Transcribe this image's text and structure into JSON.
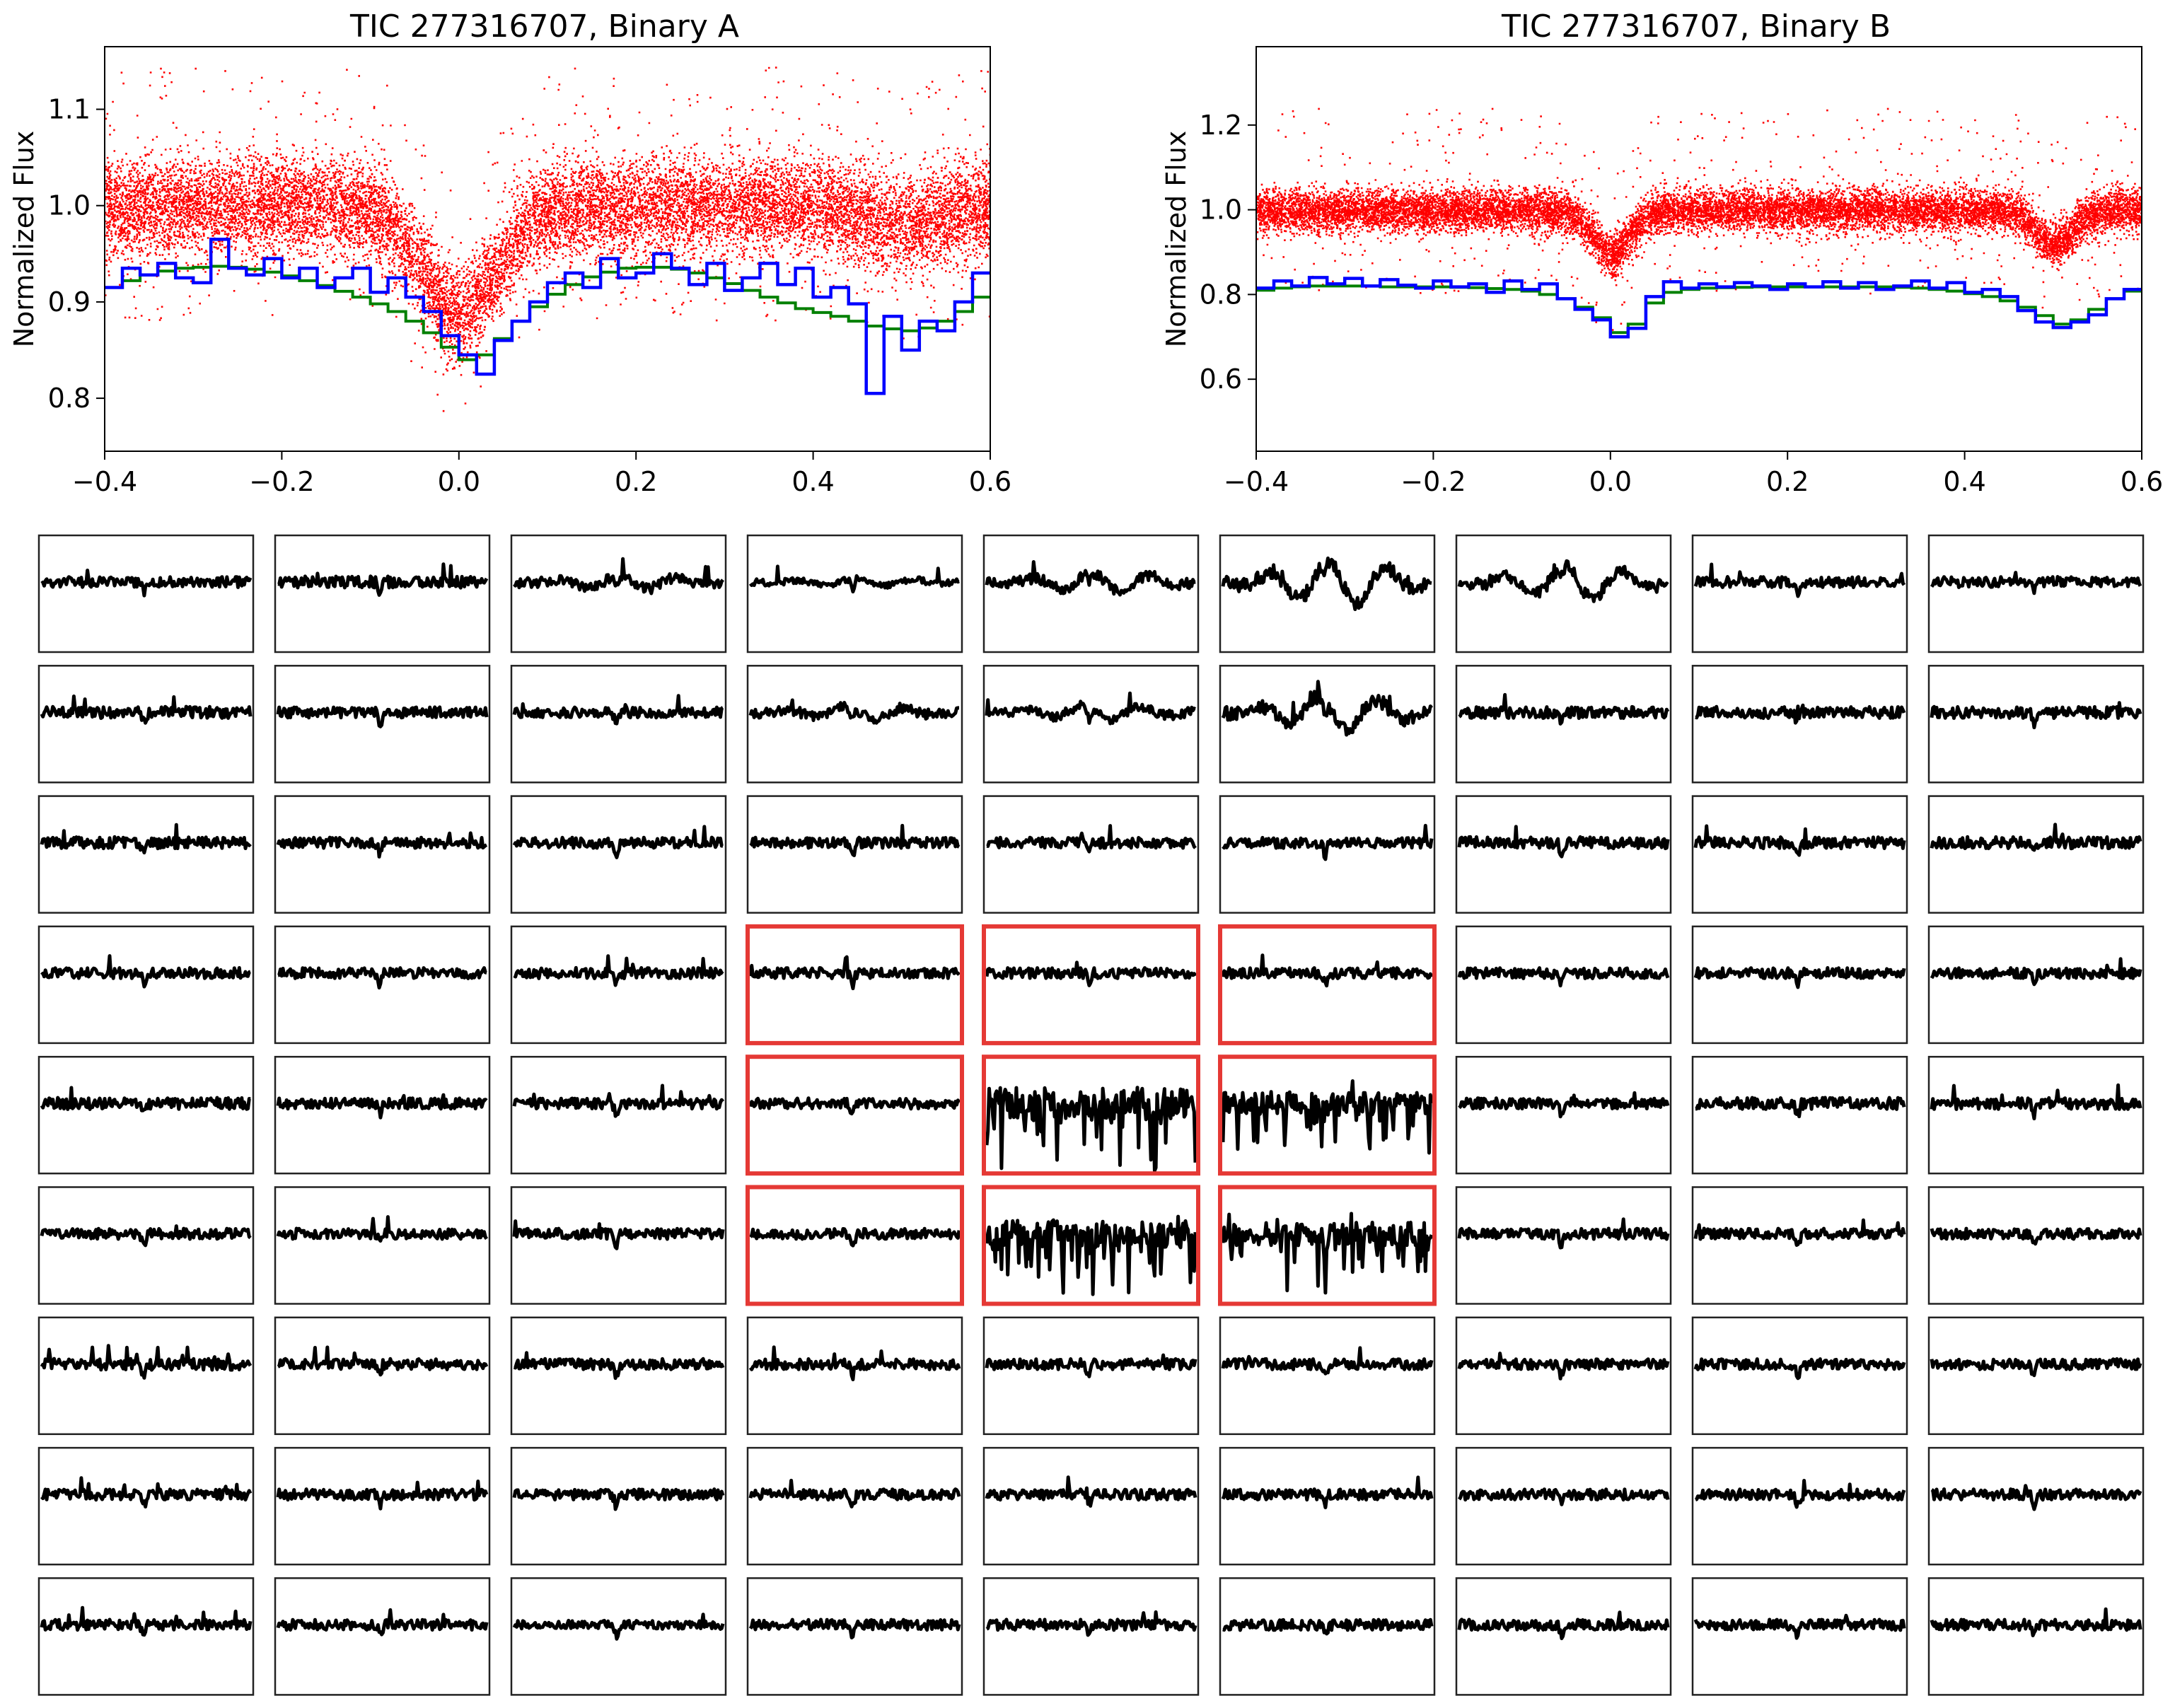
{
  "chart_data": [
    {
      "type": "scatter",
      "title": "TIC 277316707, Binary A",
      "xlabel": "",
      "ylabel": "Normalized Flux",
      "xlim": [
        -0.4,
        0.6
      ],
      "ylim": [
        0.745,
        1.165
      ],
      "xticks": [
        "−0.4",
        "−0.2",
        "0.0",
        "0.2",
        "0.4",
        "0.6"
      ],
      "xtick_values": [
        -0.4,
        -0.2,
        0.0,
        0.2,
        0.4,
        0.6
      ],
      "yticks": [
        "0.8",
        "0.9",
        "1.0",
        "1.1"
      ],
      "ytick_values": [
        0.8,
        0.9,
        1.0,
        1.1
      ],
      "scatter_color": "#ff0000",
      "model": {
        "primary_eclipse": {
          "phase": 0.0,
          "depth": 0.11,
          "width": 0.06
        },
        "secondary_eclipse": {
          "phase": 0.5,
          "depth": 0.02,
          "width": 0.06
        },
        "band_halfwidth": 0.045,
        "scatter_spread": 0.12
      },
      "series": [
        {
          "color": "#0000ff",
          "step": true,
          "x": [
            -0.4,
            -0.38,
            -0.36,
            -0.34,
            -0.32,
            -0.3,
            -0.28,
            -0.26,
            -0.24,
            -0.22,
            -0.2,
            -0.18,
            -0.16,
            -0.14,
            -0.12,
            -0.1,
            -0.08,
            -0.06,
            -0.04,
            -0.02,
            0.0,
            0.02,
            0.04,
            0.06,
            0.08,
            0.1,
            0.12,
            0.14,
            0.16,
            0.18,
            0.2,
            0.22,
            0.24,
            0.26,
            0.28,
            0.3,
            0.32,
            0.34,
            0.36,
            0.38,
            0.4,
            0.42,
            0.44,
            0.46,
            0.48,
            0.5,
            0.52,
            0.54,
            0.56,
            0.58
          ],
          "values": [
            0.915,
            0.935,
            0.928,
            0.94,
            0.925,
            0.92,
            0.965,
            0.935,
            0.928,
            0.945,
            0.925,
            0.935,
            0.915,
            0.925,
            0.935,
            0.91,
            0.925,
            0.905,
            0.89,
            0.865,
            0.845,
            0.825,
            0.86,
            0.88,
            0.9,
            0.92,
            0.93,
            0.915,
            0.945,
            0.925,
            0.93,
            0.95,
            0.935,
            0.918,
            0.94,
            0.912,
            0.925,
            0.94,
            0.918,
            0.935,
            0.905,
            0.915,
            0.898,
            0.805,
            0.885,
            0.85,
            0.88,
            0.87,
            0.9,
            0.93
          ]
        },
        {
          "color": "#008000",
          "step": true,
          "x": [
            -0.4,
            -0.38,
            -0.36,
            -0.34,
            -0.32,
            -0.3,
            -0.28,
            -0.26,
            -0.24,
            -0.22,
            -0.2,
            -0.18,
            -0.16,
            -0.14,
            -0.12,
            -0.1,
            -0.08,
            -0.06,
            -0.04,
            -0.02,
            0.0,
            0.02,
            0.04,
            0.06,
            0.08,
            0.1,
            0.12,
            0.14,
            0.16,
            0.18,
            0.2,
            0.22,
            0.24,
            0.26,
            0.28,
            0.3,
            0.32,
            0.34,
            0.36,
            0.38,
            0.4,
            0.42,
            0.44,
            0.46,
            0.48,
            0.5,
            0.52,
            0.54,
            0.56,
            0.58
          ],
          "values": [
            0.915,
            0.922,
            0.928,
            0.932,
            0.935,
            0.936,
            0.937,
            0.936,
            0.934,
            0.931,
            0.927,
            0.922,
            0.917,
            0.911,
            0.905,
            0.898,
            0.89,
            0.88,
            0.868,
            0.853,
            0.84,
            0.845,
            0.862,
            0.88,
            0.895,
            0.908,
            0.918,
            0.926,
            0.931,
            0.935,
            0.936,
            0.936,
            0.934,
            0.93,
            0.925,
            0.919,
            0.912,
            0.905,
            0.899,
            0.893,
            0.889,
            0.885,
            0.88,
            0.875,
            0.872,
            0.87,
            0.873,
            0.88,
            0.89,
            0.905
          ]
        }
      ]
    },
    {
      "type": "scatter",
      "title": "TIC 277316707, Binary B",
      "xlabel": "",
      "ylabel": "Normalized Flux",
      "xlim": [
        -0.4,
        0.6
      ],
      "ylim": [
        0.43,
        1.385
      ],
      "xticks": [
        "−0.4",
        "−0.2",
        "0.0",
        "0.2",
        "0.4",
        "0.6"
      ],
      "xtick_values": [
        -0.4,
        -0.2,
        0.0,
        0.2,
        0.4,
        0.6
      ],
      "yticks": [
        "0.6",
        "0.8",
        "1.0",
        "1.2"
      ],
      "ytick_values": [
        0.6,
        0.8,
        1.0,
        1.2
      ],
      "scatter_color": "#ff0000",
      "model": {
        "primary_eclipse": {
          "phase": 0.0,
          "depth": 0.1,
          "width": 0.03
        },
        "secondary_eclipse": {
          "phase": 0.5,
          "depth": 0.08,
          "width": 0.03
        },
        "band_halfwidth": 0.045,
        "scatter_spread": 0.2
      },
      "series": [
        {
          "color": "#0000ff",
          "step": true,
          "x": [
            -0.4,
            -0.38,
            -0.36,
            -0.34,
            -0.32,
            -0.3,
            -0.28,
            -0.26,
            -0.24,
            -0.22,
            -0.2,
            -0.18,
            -0.16,
            -0.14,
            -0.12,
            -0.1,
            -0.08,
            -0.06,
            -0.04,
            -0.02,
            0.0,
            0.02,
            0.04,
            0.06,
            0.08,
            0.1,
            0.12,
            0.14,
            0.16,
            0.18,
            0.2,
            0.22,
            0.24,
            0.26,
            0.28,
            0.3,
            0.32,
            0.34,
            0.36,
            0.38,
            0.4,
            0.42,
            0.44,
            0.46,
            0.48,
            0.5,
            0.52,
            0.54,
            0.56,
            0.58
          ],
          "values": [
            0.815,
            0.832,
            0.82,
            0.84,
            0.825,
            0.838,
            0.82,
            0.835,
            0.822,
            0.815,
            0.832,
            0.818,
            0.825,
            0.805,
            0.832,
            0.812,
            0.825,
            0.79,
            0.765,
            0.74,
            0.7,
            0.72,
            0.795,
            0.83,
            0.815,
            0.825,
            0.818,
            0.828,
            0.82,
            0.812,
            0.825,
            0.818,
            0.83,
            0.815,
            0.828,
            0.812,
            0.82,
            0.832,
            0.815,
            0.828,
            0.805,
            0.812,
            0.795,
            0.762,
            0.735,
            0.722,
            0.735,
            0.752,
            0.79,
            0.812
          ]
        },
        {
          "color": "#008000",
          "step": true,
          "x": [
            -0.4,
            -0.38,
            -0.36,
            -0.34,
            -0.32,
            -0.3,
            -0.28,
            -0.26,
            -0.24,
            -0.22,
            -0.2,
            -0.18,
            -0.16,
            -0.14,
            -0.12,
            -0.1,
            -0.08,
            -0.06,
            -0.04,
            -0.02,
            0.0,
            0.02,
            0.04,
            0.06,
            0.08,
            0.1,
            0.12,
            0.14,
            0.16,
            0.18,
            0.2,
            0.22,
            0.24,
            0.26,
            0.28,
            0.3,
            0.32,
            0.34,
            0.36,
            0.38,
            0.4,
            0.42,
            0.44,
            0.46,
            0.48,
            0.5,
            0.52,
            0.54,
            0.56,
            0.58
          ],
          "values": [
            0.81,
            0.815,
            0.818,
            0.82,
            0.82,
            0.82,
            0.82,
            0.818,
            0.818,
            0.818,
            0.818,
            0.817,
            0.816,
            0.814,
            0.812,
            0.808,
            0.8,
            0.79,
            0.77,
            0.745,
            0.71,
            0.73,
            0.78,
            0.805,
            0.812,
            0.815,
            0.816,
            0.817,
            0.818,
            0.818,
            0.818,
            0.818,
            0.818,
            0.818,
            0.818,
            0.818,
            0.817,
            0.815,
            0.812,
            0.808,
            0.802,
            0.795,
            0.785,
            0.77,
            0.75,
            0.73,
            0.74,
            0.765,
            0.79,
            0.808
          ]
        }
      ]
    }
  ],
  "pixel_grid": {
    "rows": 9,
    "cols": 9,
    "line_color": "#000000",
    "highlight_color": "#e53935",
    "highlighted": [
      [
        3,
        3
      ],
      [
        3,
        4
      ],
      [
        3,
        5
      ],
      [
        4,
        3
      ],
      [
        4,
        4
      ],
      [
        4,
        5
      ],
      [
        5,
        3
      ],
      [
        5,
        4
      ],
      [
        5,
        5
      ]
    ],
    "noise": [
      [
        1.0,
        1.1,
        1.0,
        0.6,
        1.0,
        1.3,
        1.2,
        1.0,
        1.0
      ],
      [
        1.1,
        1.0,
        1.0,
        1.0,
        0.9,
        1.3,
        1.1,
        1.1,
        1.1
      ],
      [
        1.1,
        1.0,
        1.0,
        1.0,
        1.0,
        1.0,
        1.1,
        1.1,
        1.1
      ],
      [
        1.0,
        1.0,
        1.0,
        1.0,
        1.0,
        1.0,
        1.0,
        1.0,
        1.0
      ],
      [
        1.1,
        1.0,
        1.0,
        1.0,
        3.0,
        2.2,
        1.0,
        1.1,
        1.1
      ],
      [
        1.0,
        1.0,
        1.0,
        1.0,
        2.6,
        2.2,
        1.0,
        1.0,
        1.0
      ],
      [
        1.1,
        1.0,
        1.0,
        1.0,
        1.0,
        1.0,
        1.0,
        1.0,
        1.0
      ],
      [
        1.0,
        1.0,
        1.0,
        1.0,
        1.0,
        1.0,
        1.0,
        1.0,
        1.0
      ],
      [
        1.0,
        1.0,
        0.8,
        1.0,
        1.0,
        1.0,
        1.0,
        1.0,
        1.0
      ]
    ],
    "wobble": [
      [
        0,
        0,
        1,
        0.6,
        1.4,
        3.2,
        2.4,
        0,
        0
      ],
      [
        0,
        0,
        0,
        0.8,
        1.0,
        2.4,
        0,
        0,
        0
      ],
      [
        0,
        0,
        0,
        0,
        0,
        0,
        0,
        0,
        0
      ],
      [
        0,
        0,
        0,
        0,
        0,
        0,
        0,
        0,
        0
      ],
      [
        0,
        0,
        0,
        0,
        0,
        0,
        0,
        0,
        0
      ],
      [
        0,
        0,
        0,
        0,
        0,
        0,
        0,
        0,
        0
      ],
      [
        0,
        0,
        0,
        0,
        0,
        0,
        0,
        0,
        0
      ],
      [
        0,
        0,
        0,
        0,
        0,
        0,
        0,
        0,
        0
      ],
      [
        0,
        0,
        0,
        0,
        0,
        0,
        0,
        0,
        0
      ]
    ]
  }
}
